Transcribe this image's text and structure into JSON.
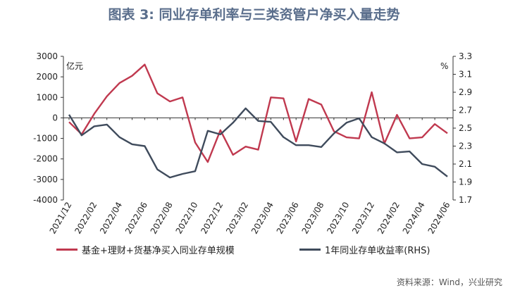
{
  "title": "图表 3:  同业存单利率与三类资管户净买入量走势",
  "source": "资料来源：Wind，兴业研究",
  "chart_data": {
    "type": "line",
    "x": [
      "2021/12",
      "2022/01",
      "2022/02",
      "2022/03",
      "2022/04",
      "2022/05",
      "2022/06",
      "2022/07",
      "2022/08",
      "2022/09",
      "2022/10",
      "2022/11",
      "2022/12",
      "2023/01",
      "2023/02",
      "2023/03",
      "2023/04",
      "2023/05",
      "2023/06",
      "2023/07",
      "2023/08",
      "2023/09",
      "2023/10",
      "2023/11",
      "2023/12",
      "2024/01",
      "2024/02",
      "2024/03",
      "2024/04",
      "2024/05",
      "2024/06"
    ],
    "x_tick_labels": [
      "2021/12",
      "2022/02",
      "2022/04",
      "2022/06",
      "2022/08",
      "2022/10",
      "2022/12",
      "2023/02",
      "2023/04",
      "2023/06",
      "2023/08",
      "2023/10",
      "2023/12",
      "2024/02",
      "2024/04",
      "2024/06"
    ],
    "y_left": {
      "label": "亿元",
      "ylim": [
        -4000,
        3000
      ],
      "ticks": [
        3000,
        2000,
        1000,
        0,
        -1000,
        -2000,
        -3000,
        -4000
      ]
    },
    "y_right": {
      "label": "%",
      "ylim": [
        1.7,
        3.3
      ],
      "ticks": [
        3.3,
        3.1,
        2.9,
        2.7,
        2.5,
        2.3,
        2.1,
        1.9,
        1.7
      ]
    },
    "series": [
      {
        "name": "基金+理财+货基净买入同业存单规模",
        "axis": "left",
        "color": "#c0394f",
        "values": [
          -200,
          -800,
          200,
          1050,
          1700,
          2050,
          2600,
          1200,
          800,
          1000,
          -1200,
          -2150,
          -600,
          -1800,
          -1400,
          -1550,
          1000,
          950,
          -1150,
          920,
          650,
          -650,
          -950,
          -1000,
          1250,
          -1250,
          150,
          -1000,
          -950,
          -300,
          -750
        ]
      },
      {
        "name": "1年同业存单收益率(RHS)",
        "axis": "right",
        "color": "#3f4b5c",
        "values": [
          2.65,
          2.42,
          2.52,
          2.54,
          2.4,
          2.32,
          2.3,
          2.04,
          1.95,
          1.99,
          2.02,
          2.47,
          2.43,
          2.56,
          2.72,
          2.58,
          2.57,
          2.4,
          2.31,
          2.31,
          2.29,
          2.44,
          2.56,
          2.61,
          2.4,
          2.33,
          2.23,
          2.24,
          2.1,
          2.07,
          1.96
        ]
      }
    ],
    "grid": false,
    "legend_position": "bottom"
  }
}
